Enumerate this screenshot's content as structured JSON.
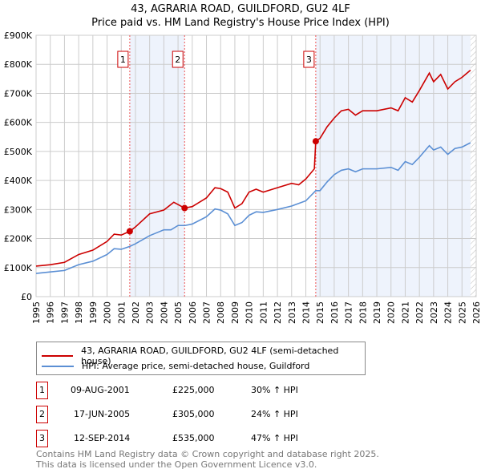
{
  "chart_data": {
    "type": "line",
    "title": "43, AGRARIA ROAD, GUILDFORD, GU2 4LF",
    "subtitle": "Price paid vs. HM Land Registry's House Price Index (HPI)",
    "xlim": [
      1995,
      2026
    ],
    "ylim": [
      0,
      900000
    ],
    "x_ticks": [
      "1995",
      "1996",
      "1997",
      "1998",
      "1999",
      "2000",
      "2001",
      "2002",
      "2003",
      "2004",
      "2005",
      "2006",
      "2007",
      "2008",
      "2009",
      "2010",
      "2011",
      "2012",
      "2013",
      "2014",
      "2015",
      "2016",
      "2017",
      "2018",
      "2019",
      "2020",
      "2021",
      "2022",
      "2023",
      "2024",
      "2025",
      "2026"
    ],
    "y_ticks": [
      {
        "v": 0,
        "l": "£0"
      },
      {
        "v": 100000,
        "l": "£100K"
      },
      {
        "v": 200000,
        "l": "£200K"
      },
      {
        "v": 300000,
        "l": "£300K"
      },
      {
        "v": 400000,
        "l": "£400K"
      },
      {
        "v": 500000,
        "l": "£500K"
      },
      {
        "v": 600000,
        "l": "£600K"
      },
      {
        "v": 700000,
        "l": "£700K"
      },
      {
        "v": 800000,
        "l": "£800K"
      },
      {
        "v": 900000,
        "l": "£900K"
      }
    ],
    "series": [
      {
        "name": "43, AGRARIA ROAD, GUILDFORD, GU2 4LF (semi-detached house)",
        "color": "#cc0000",
        "x": [
          1995,
          1996,
          1997,
          1998,
          1999,
          2000,
          2000.5,
          2001,
          2001.6,
          2002,
          2003,
          2004,
          2004.7,
          2005.46,
          2006,
          2007,
          2007.6,
          2008,
          2008.5,
          2009,
          2009.5,
          2010,
          2010.5,
          2011,
          2012,
          2013,
          2013.5,
          2014,
          2014.6,
          2014.7,
          2015,
          2015.5,
          2016,
          2016.5,
          2017,
          2017.5,
          2018,
          2019,
          2020,
          2020.5,
          2021,
          2021.5,
          2022,
          2022.7,
          2023,
          2023.5,
          2024,
          2024.5,
          2025,
          2025.6
        ],
        "y": [
          105,
          110,
          118,
          145,
          160,
          190,
          215,
          212,
          225,
          240,
          285,
          298,
          325,
          305,
          310,
          340,
          375,
          372,
          360,
          305,
          320,
          360,
          370,
          360,
          375,
          390,
          385,
          405,
          440,
          535,
          545,
          585,
          615,
          640,
          645,
          625,
          640,
          640,
          650,
          640,
          685,
          670,
          710,
          770,
          740,
          765,
          715,
          740,
          755,
          780
        ]
      },
      {
        "name": "HPI: Average price, semi-detached house, Guildford",
        "color": "#5b8fd4",
        "x": [
          1995,
          1996,
          1997,
          1998,
          1999,
          2000,
          2000.5,
          2001,
          2001.6,
          2002,
          2003,
          2003.5,
          2004,
          2004.5,
          2005,
          2005.5,
          2006,
          2007,
          2007.6,
          2008,
          2008.5,
          2009,
          2009.5,
          2010,
          2010.5,
          2011,
          2012,
          2013,
          2014,
          2014.7,
          2015,
          2015.5,
          2016,
          2016.5,
          2017,
          2017.5,
          2018,
          2019,
          2020,
          2020.5,
          2021,
          2021.5,
          2022,
          2022.7,
          2023,
          2023.5,
          2024,
          2024.5,
          2025,
          2025.6
        ],
        "y": [
          80,
          85,
          90,
          110,
          122,
          145,
          165,
          163,
          173,
          182,
          210,
          220,
          230,
          230,
          245,
          245,
          250,
          275,
          302,
          298,
          285,
          245,
          255,
          280,
          292,
          290,
          300,
          312,
          330,
          365,
          365,
          395,
          420,
          435,
          440,
          430,
          440,
          440,
          445,
          435,
          465,
          455,
          480,
          520,
          505,
          515,
          490,
          510,
          515,
          530
        ]
      }
    ],
    "y_unit": "thousands GBP",
    "sales": [
      {
        "n": "1",
        "x": 2001.6,
        "date": "09-AUG-2001",
        "price": "£225,000",
        "price_v": 225,
        "hpi": "30% ↑ HPI"
      },
      {
        "n": "2",
        "x": 2005.46,
        "date": "17-JUN-2005",
        "price": "£305,000",
        "price_v": 305,
        "hpi": "24% ↑ HPI"
      },
      {
        "n": "3",
        "x": 2014.7,
        "date": "12-SEP-2014",
        "price": "£535,000",
        "price_v": 535,
        "hpi": "47% ↑ HPI"
      }
    ]
  },
  "footer": {
    "line1": "Contains HM Land Registry data © Crown copyright and database right 2025.",
    "line2": "This data is licensed under the Open Government Licence v3.0."
  }
}
